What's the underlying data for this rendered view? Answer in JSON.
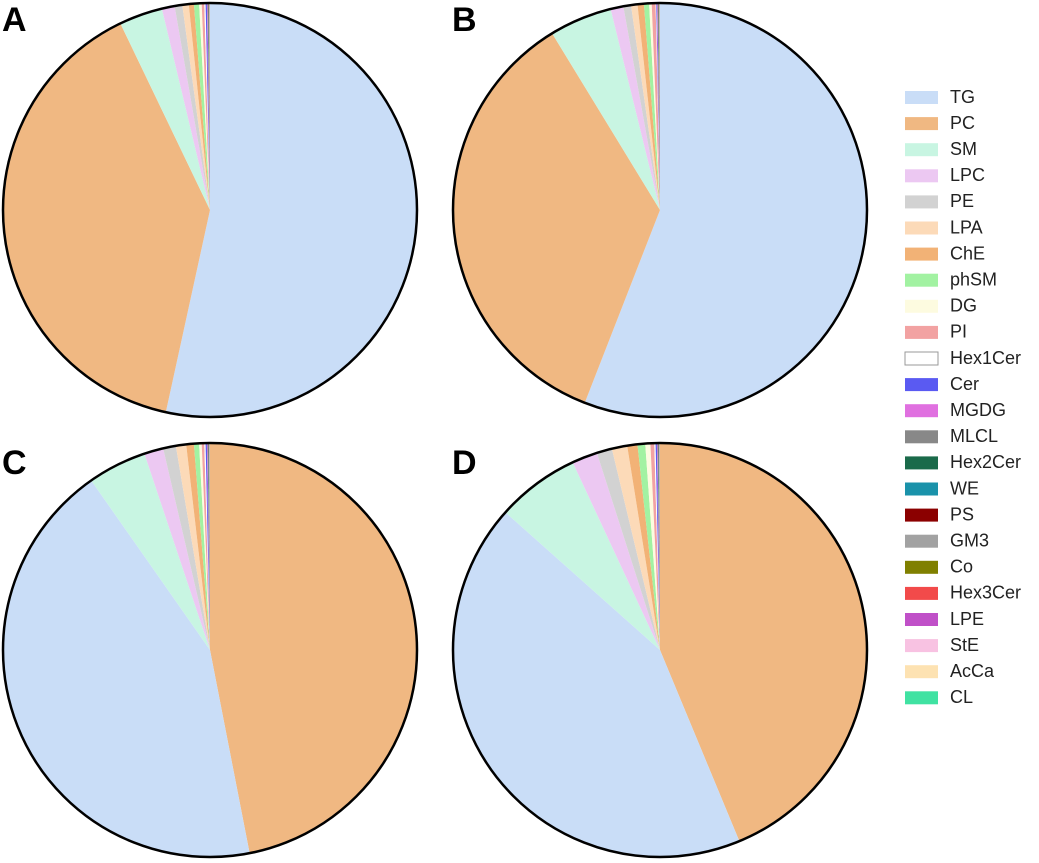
{
  "legend": [
    {
      "name": "TG",
      "color": "#c9ddf7"
    },
    {
      "name": "PC",
      "color": "#f0b882"
    },
    {
      "name": "SM",
      "color": "#c8f5e2"
    },
    {
      "name": "LPC",
      "color": "#ecc8f2"
    },
    {
      "name": "PE",
      "color": "#d2d2d2"
    },
    {
      "name": "LPA",
      "color": "#fcdab8"
    },
    {
      "name": "ChE",
      "color": "#f2b276"
    },
    {
      "name": "phSM",
      "color": "#a2f2a2"
    },
    {
      "name": "DG",
      "color": "#fdfbe0"
    },
    {
      "name": "PI",
      "color": "#f2a2a2"
    },
    {
      "name": "Hex1Cer",
      "color": "#ffffff"
    },
    {
      "name": "Cer",
      "color": "#5a5af2"
    },
    {
      "name": "MGDG",
      "color": "#e070e0"
    },
    {
      "name": "MLCL",
      "color": "#888888"
    },
    {
      "name": "Hex2Cer",
      "color": "#1a6a4a"
    },
    {
      "name": "WE",
      "color": "#1a92aa"
    },
    {
      "name": "PS",
      "color": "#8b0000"
    },
    {
      "name": "GM3",
      "color": "#a2a2a2"
    },
    {
      "name": "Co",
      "color": "#808000"
    },
    {
      "name": "Hex3Cer",
      "color": "#f24a4a"
    },
    {
      "name": "LPE",
      "color": "#c050c8"
    },
    {
      "name": "StE",
      "color": "#f8c2e2"
    },
    {
      "name": "AcCa",
      "color": "#fde2b2"
    },
    {
      "name": "CL",
      "color": "#40e2a2"
    }
  ],
  "chart_data": [
    {
      "type": "pie",
      "panel_label": "A",
      "categories": [
        "TG",
        "PC",
        "SM",
        "LPC",
        "PE",
        "LPA",
        "ChE",
        "phSM",
        "DG",
        "PI",
        "Hex1Cer",
        "Cer",
        "MGDG",
        "MLCL",
        "Hex2Cer",
        "WE",
        "PS",
        "GM3",
        "Co",
        "Hex3Cer",
        "LPE",
        "StE",
        "AcCa",
        "CL"
      ],
      "values": [
        53.5,
        39.5,
        3.4,
        1.0,
        0.6,
        0.5,
        0.4,
        0.4,
        0.2,
        0.2,
        0.1,
        0.1,
        0.05,
        0.05,
        0.02,
        0.02,
        0.02,
        0.02,
        0.01,
        0.01,
        0.01,
        0.01,
        0.01,
        0.01
      ]
    },
    {
      "type": "pie",
      "panel_label": "B",
      "categories": [
        "TG",
        "PC",
        "SM",
        "LPC",
        "PE",
        "LPA",
        "ChE",
        "phSM",
        "DG",
        "PI",
        "Hex1Cer",
        "Cer",
        "MGDG",
        "MLCL",
        "Hex2Cer",
        "WE",
        "PS",
        "GM3",
        "Co",
        "Hex3Cer",
        "LPE",
        "StE",
        "AcCa",
        "CL"
      ],
      "values": [
        56.0,
        35.4,
        4.9,
        1.0,
        0.6,
        0.5,
        0.5,
        0.4,
        0.2,
        0.3,
        0.05,
        0.05,
        0.05,
        0.05,
        0.02,
        0.02,
        0.02,
        0.02,
        0.01,
        0.01,
        0.01,
        0.01,
        0.01,
        0.01
      ]
    },
    {
      "type": "pie",
      "panel_label": "C",
      "categories": [
        "PC",
        "TG",
        "SM",
        "LPC",
        "PE",
        "LPA",
        "ChE",
        "phSM",
        "DG",
        "PI",
        "Hex1Cer",
        "Cer",
        "MGDG",
        "MLCL",
        "Hex2Cer",
        "WE",
        "PS",
        "GM3",
        "Co",
        "Hex3Cer",
        "LPE",
        "StE",
        "AcCa",
        "CL"
      ],
      "values": [
        47.0,
        43.4,
        4.6,
        1.5,
        1.0,
        0.8,
        0.6,
        0.4,
        0.2,
        0.2,
        0.1,
        0.1,
        0.05,
        0.05,
        0.02,
        0.02,
        0.02,
        0.02,
        0.01,
        0.01,
        0.01,
        0.01,
        0.01,
        0.01
      ]
    },
    {
      "type": "pie",
      "panel_label": "D",
      "categories": [
        "PC",
        "TG",
        "SM",
        "LPC",
        "PE",
        "LPA",
        "ChE",
        "phSM",
        "DG",
        "PI",
        "Hex1Cer",
        "Cer",
        "MGDG",
        "MLCL",
        "Hex2Cer",
        "WE",
        "PS",
        "GM3",
        "Co",
        "Hex3Cer",
        "LPE",
        "StE",
        "AcCa",
        "CL"
      ],
      "values": [
        43.8,
        42.9,
        6.5,
        2.0,
        1.2,
        1.2,
        0.8,
        0.6,
        0.4,
        0.3,
        0.1,
        0.1,
        0.05,
        0.05,
        0.02,
        0.02,
        0.02,
        0.02,
        0.01,
        0.01,
        0.01,
        0.01,
        0.01,
        0.01
      ]
    }
  ]
}
